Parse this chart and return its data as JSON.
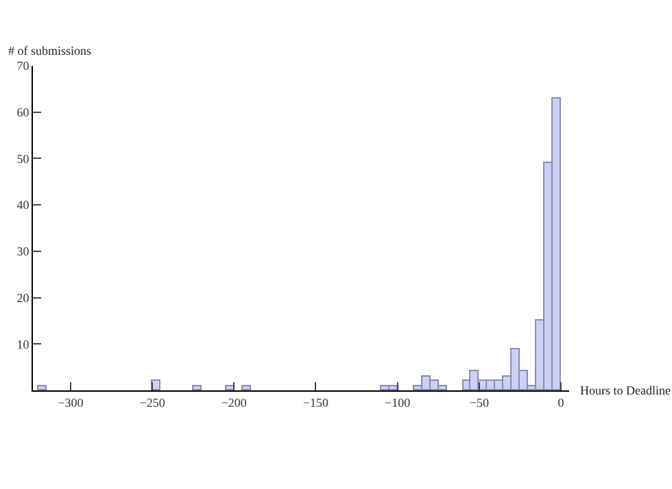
{
  "chart_data": {
    "type": "histogram",
    "xlabel": "Hours to Deadline",
    "ylabel": "# of submissions",
    "bins": [
      -325,
      -320,
      -315,
      -310,
      -305,
      -300,
      -295,
      -290,
      -285,
      -280,
      -275,
      -270,
      -265,
      -260,
      -255,
      -250,
      -245,
      -240,
      -235,
      -230,
      -225,
      -220,
      -215,
      -210,
      -205,
      -200,
      -195,
      -190,
      -185,
      -180,
      -175,
      -170,
      -165,
      -160,
      -155,
      -150,
      -145,
      -140,
      -135,
      -130,
      -125,
      -120,
      -115,
      -110,
      -105,
      -100,
      -95,
      -90,
      -85,
      -80,
      -75,
      -70,
      -65,
      -60,
      -55,
      -50,
      -45,
      -40,
      -35,
      -30,
      -25,
      -20,
      -15,
      -10,
      -5,
      0
    ],
    "values": [
      0,
      1,
      0,
      0,
      0,
      0,
      0,
      0,
      0,
      0,
      0,
      0,
      0,
      0,
      0,
      2,
      0,
      0,
      0,
      0,
      1,
      0,
      0,
      0,
      1,
      0,
      1,
      0,
      0,
      0,
      0,
      0,
      0,
      0,
      0,
      0,
      0,
      0,
      0,
      0,
      0,
      0,
      0,
      1,
      1,
      0,
      0,
      1,
      3,
      2,
      1,
      0,
      0,
      2,
      4,
      2,
      2,
      2,
      3,
      9,
      4,
      1,
      15,
      49,
      63
    ],
    "color": "#ccd0f5",
    "xlim": [
      -323,
      5
    ],
    "xticks": [
      -300,
      -250,
      -200,
      -150,
      -100,
      -50,
      0
    ],
    "ylim": [
      0,
      70
    ],
    "yticks": [
      10,
      20,
      30,
      40,
      50,
      60,
      70
    ],
    "legend": false
  }
}
